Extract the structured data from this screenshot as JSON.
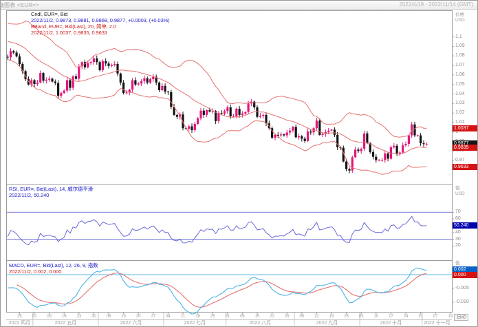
{
  "window": {
    "title": "图表 <EUR=>",
    "date_range": "2022/4/19 - 2022/11/14 (GMT)"
  },
  "colors": {
    "up_candle": "#e2187d",
    "down_candle": "#151515",
    "bband_line": "#e57070",
    "rsi_line": "#6868d8",
    "rsi_threshold": "#9494e2",
    "macd_line": "#58b8e8",
    "macd_signal": "#e57070",
    "macd_zero_line": "#7cc6ea",
    "badge_red": "#d41414",
    "badge_black": "#161616",
    "badge_navy": "#0000b0",
    "badge_blue": "#0a62c8",
    "legend_black": "#222222",
    "legend_blue": "#2222cc",
    "legend_red": "#cc2222",
    "frame": "#999999",
    "axis_text": "#8a8a8a"
  },
  "main_panel": {
    "legend": [
      "Cndl, EUR=, Bid",
      "2022/11/2, 0.9873, 0.9881, 0.9868, 0.9877, +0.0003, (+0.03%)",
      "BBand, EUR=, Bid(Last), 20, 简单, 2.0",
      "2022/11/2, 1.0037, 0.9835, 0.9633"
    ],
    "legend_colors": [
      "legend_black",
      "legend_blue",
      "legend_red",
      "legend_red"
    ],
    "axis_unit": [
      "价格",
      "USD"
    ],
    "y_ticks": [
      1.1,
      1.09,
      1.08,
      1.07,
      1.06,
      1.05,
      1.04,
      1.03,
      1.02,
      1.01,
      1.0,
      0.99,
      0.98,
      0.97
    ],
    "badges": [
      {
        "value": 1.0037,
        "label": "1.0037",
        "bg": "badge_red"
      },
      {
        "value": 0.9877,
        "label": "0.9877",
        "bg": "badge_black"
      },
      {
        "value": 0.9835,
        "label": "0.9835",
        "bg": "badge_red"
      },
      {
        "value": 0.9633,
        "label": "0.9633",
        "bg": "badge_red"
      }
    ]
  },
  "rsi_panel": {
    "legend": [
      "RSI, EUR=, Bid(Last), 14, 威尔德平滑",
      "2022/11/2, 50.240"
    ],
    "legend_colors": [
      "legend_blue",
      "legend_blue"
    ],
    "axis_unit": [
      "值",
      "USD"
    ],
    "y_ticks": [
      70,
      60,
      50,
      40,
      30,
      20
    ],
    "thresholds": [
      70,
      30
    ],
    "badge": {
      "value": 50.24,
      "label": "50.240",
      "bg": "badge_navy"
    }
  },
  "macd_panel": {
    "legend": [
      "MACD, EUR=, Bid(Last), 12, 26, 9, 指数",
      "2022/11/2, 0.002, 0.000"
    ],
    "legend_colors": [
      "legend_blue",
      "legend_red"
    ],
    "axis_unit": [
      "值",
      "USD"
    ],
    "y_ticks": [
      0,
      -0.005,
      -0.01
    ],
    "badges": [
      {
        "value": 0.002,
        "label": "0.002",
        "bg": "badge_blue"
      },
      {
        "value": 0.0,
        "label": "0.000",
        "bg": "badge_red"
      }
    ]
  },
  "x_axis": {
    "total_slots": 150,
    "day_ticks": [
      {
        "t": "25",
        "i": 4
      },
      {
        "t": "02",
        "i": 9
      },
      {
        "t": "09",
        "i": 14
      },
      {
        "t": "16",
        "i": 19
      },
      {
        "t": "23",
        "i": 24
      },
      {
        "t": "30",
        "i": 29
      },
      {
        "t": "06",
        "i": 34
      },
      {
        "t": "13",
        "i": 39
      },
      {
        "t": "20",
        "i": 44
      },
      {
        "t": "27",
        "i": 49
      },
      {
        "t": "04",
        "i": 54
      },
      {
        "t": "11",
        "i": 59
      },
      {
        "t": "18",
        "i": 64
      },
      {
        "t": "25",
        "i": 69
      },
      {
        "t": "01",
        "i": 74
      },
      {
        "t": "08",
        "i": 79
      },
      {
        "t": "15",
        "i": 84
      },
      {
        "t": "22",
        "i": 89
      },
      {
        "t": "29",
        "i": 94
      },
      {
        "t": "05",
        "i": 99
      },
      {
        "t": "12",
        "i": 104
      },
      {
        "t": "19",
        "i": 109
      },
      {
        "t": "26",
        "i": 114
      },
      {
        "t": "03",
        "i": 119
      },
      {
        "t": "10",
        "i": 124
      },
      {
        "t": "17",
        "i": 129
      },
      {
        "t": "24",
        "i": 134
      },
      {
        "t": "31",
        "i": 139
      },
      {
        "t": "07",
        "i": 144
      },
      {
        "t": "14",
        "i": 149
      }
    ],
    "months": [
      {
        "label": "2022 四月",
        "start": 0,
        "end": 9
      },
      {
        "label": "2022 五月",
        "start": 9,
        "end": 31
      },
      {
        "label": "2022 六月",
        "start": 31,
        "end": 53
      },
      {
        "label": "2022 七月",
        "start": 53,
        "end": 74
      },
      {
        "label": "2022 八月",
        "start": 74,
        "end": 97
      },
      {
        "label": "2022 九月",
        "start": 97,
        "end": 119
      },
      {
        "label": "2022 十月",
        "start": 119,
        "end": 140
      },
      {
        "label": "2022 十一月",
        "start": 140,
        "end": 150
      }
    ]
  },
  "axis": {
    "auto_label": "自动"
  },
  "chart_data": {
    "type": "candlestick",
    "symbol": "EUR=",
    "field": "Bid",
    "interval": "daily",
    "visible_range": "2022-04-19 to 2022-11-14",
    "last_bar": {
      "date": "2022/11/2",
      "open": 0.9873,
      "high": 0.9881,
      "low": 0.9868,
      "close": 0.9877,
      "change": "+0.0003",
      "change_pct": "+0.03%"
    },
    "indicators": {
      "bollinger": {
        "period": 20,
        "type": "简单",
        "width": 2.0,
        "upper": 1.0037,
        "middle": 0.9835,
        "lower": 0.9633
      },
      "rsi": {
        "period": 14,
        "smoothing": "威尔德平滑",
        "last": 50.24
      },
      "macd": {
        "fast": 12,
        "slow": 26,
        "signal": 9,
        "type": "指数",
        "last_macd": 0.002,
        "last_signal": 0.0
      }
    },
    "price_axis_range": [
      0.947,
      1.1265
    ],
    "rsi_axis_range": [
      0,
      100
    ],
    "macd_axis_range": [
      -0.0135,
      0.0045
    ],
    "warmup_closes": [
      1.092,
      1.0965,
      1.101,
      1.098,
      1.094,
      1.091,
      1.0945,
      1.0955,
      1.099,
      1.101,
      1.1025,
      1.1005,
      1.0985,
      1.098,
      1.0995,
      1.0975,
      1.0985,
      1.1085,
      1.1135,
      1.1065,
      1.1045,
      1.1035,
      1.09,
      1.0895,
      1.088,
      1.0905,
      1.091,
      1.088,
      1.082,
      1.079
    ],
    "closes": [
      1.0785,
      1.085,
      1.0835,
      1.0795,
      1.0715,
      1.064,
      1.0555,
      1.05,
      1.0545,
      1.0505,
      1.052,
      1.062,
      1.054,
      1.055,
      1.056,
      1.053,
      1.0515,
      1.038,
      1.041,
      1.0435,
      1.0545,
      1.0465,
      1.0585,
      1.056,
      1.069,
      1.0735,
      1.068,
      1.0725,
      1.0735,
      1.0775,
      1.0735,
      1.065,
      1.0745,
      1.072,
      1.0695,
      1.0705,
      1.0715,
      1.0615,
      1.052,
      1.041,
      1.0415,
      1.0445,
      1.0545,
      1.05,
      1.051,
      1.0535,
      1.0565,
      1.052,
      1.0555,
      1.058,
      1.052,
      1.044,
      1.0485,
      1.0425,
      1.042,
      1.0265,
      1.018,
      1.016,
      1.0185,
      1.004,
      1.0035,
      1.006,
      1.002,
      1.0085,
      1.0145,
      1.0225,
      1.018,
      1.023,
      1.0215,
      1.022,
      1.0115,
      1.02,
      1.0195,
      1.022,
      1.026,
      1.0165,
      1.0165,
      1.0245,
      1.018,
      1.0195,
      1.021,
      1.03,
      1.032,
      1.026,
      1.016,
      1.017,
      1.018,
      1.009,
      1.004,
      0.994,
      0.997,
      0.9965,
      0.9975,
      0.9965,
      0.9995,
      1.0015,
      1.0055,
      0.9945,
      0.9955,
      0.993,
      0.9905,
      1.0005,
      0.9995,
      1.004,
      1.012,
      0.997,
      0.998,
      1.0,
      1.0015,
      1.0025,
      0.997,
      0.984,
      0.9835,
      0.969,
      0.961,
      0.9595,
      0.9735,
      0.9815,
      0.98,
      0.9825,
      0.9985,
      0.9885,
      0.979,
      0.974,
      0.9705,
      0.9705,
      0.9705,
      0.9775,
      0.972,
      0.984,
      0.9855,
      0.9775,
      0.9785,
      0.986,
      0.9875,
      0.9965,
      1.008,
      0.9965,
      0.9965,
      0.9882,
      0.9873,
      0.9877
    ]
  }
}
